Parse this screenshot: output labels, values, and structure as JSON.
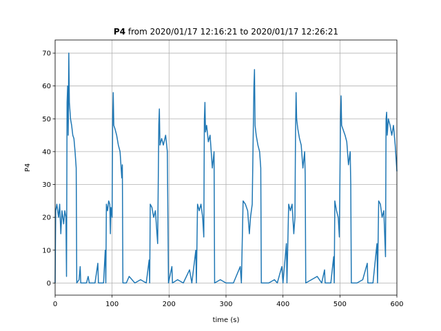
{
  "chart_data": {
    "type": "line",
    "title_bold": "P4",
    "title": "from 2020/01/17 12:16:21 to 2020/01/17 12:26:21",
    "x_label": "time (s)",
    "y_label": "P4",
    "xlim": [
      0,
      600
    ],
    "xticks": [
      0,
      100,
      200,
      300,
      400,
      500,
      600
    ],
    "ylim": [
      -3.7,
      74
    ],
    "yticks": [
      0,
      10,
      20,
      30,
      40,
      50,
      60,
      70
    ],
    "grid": true,
    "color": "#1f77b4",
    "x": [
      0,
      1,
      3,
      6,
      8,
      10,
      12,
      15,
      17,
      19,
      20,
      21,
      22,
      23,
      24,
      25,
      27,
      29,
      31,
      33,
      35,
      37,
      38,
      42,
      44,
      45,
      55,
      58,
      60,
      70,
      75,
      76,
      85,
      88,
      89,
      90,
      92,
      94,
      96,
      97,
      98,
      100,
      101,
      102,
      103,
      105,
      108,
      111,
      114,
      117,
      118,
      119,
      125,
      130,
      140,
      150,
      160,
      165,
      166,
      167,
      170,
      173,
      176,
      180,
      182,
      183,
      184,
      187,
      190,
      194,
      197,
      198,
      199,
      205,
      206,
      215,
      225,
      236,
      240,
      247,
      248,
      250,
      253,
      256,
      259,
      261,
      262,
      263,
      264,
      266,
      269,
      272,
      276,
      279,
      280,
      290,
      300,
      305,
      313,
      325,
      327,
      330,
      334,
      338,
      341,
      343,
      346,
      349,
      350,
      351,
      353,
      356,
      359,
      361,
      362,
      375,
      385,
      390,
      398,
      400,
      406,
      407,
      410,
      413,
      416,
      419,
      421,
      422,
      423,
      424,
      426,
      429,
      432,
      435,
      438,
      439,
      440,
      450,
      460,
      468,
      473,
      474,
      484,
      489,
      490,
      491,
      494,
      497,
      499,
      501,
      502,
      503,
      505,
      509,
      512,
      515,
      518,
      519,
      520,
      530,
      540,
      548,
      549,
      558,
      565,
      566,
      568,
      571,
      574,
      577,
      580,
      581,
      582,
      583,
      585,
      588,
      591,
      594,
      597,
      600
    ],
    "values": [
      0,
      22,
      24,
      20,
      24,
      15,
      22,
      18,
      22,
      20,
      2,
      55,
      60,
      45,
      70,
      55,
      50,
      48,
      45,
      44,
      40,
      35,
      0,
      1,
      5,
      0,
      0,
      2,
      0,
      0,
      6,
      0,
      0,
      10,
      0,
      24,
      22,
      25,
      24,
      15,
      23,
      20,
      50,
      58,
      48,
      47,
      45,
      42,
      40,
      32,
      36,
      0,
      0,
      2,
      0,
      1,
      0,
      7,
      0,
      24,
      23,
      20,
      22,
      12,
      48,
      53,
      42,
      44,
      42,
      45,
      40,
      20,
      0,
      5,
      0,
      1,
      0,
      4,
      0,
      10,
      0,
      24,
      22,
      24,
      20,
      14,
      50,
      55,
      46,
      48,
      43,
      45,
      35,
      40,
      0,
      1,
      0,
      0,
      0,
      5,
      0,
      25,
      24,
      22,
      15,
      20,
      24,
      60,
      65,
      48,
      45,
      42,
      40,
      35,
      0,
      0,
      1,
      0,
      5,
      0,
      12,
      0,
      24,
      22,
      24,
      15,
      20,
      45,
      58,
      50,
      47,
      44,
      42,
      35,
      40,
      33,
      0,
      1,
      2,
      0,
      4,
      0,
      0,
      8,
      0,
      25,
      22,
      20,
      14,
      50,
      57,
      48,
      47,
      45,
      43,
      36,
      40,
      30,
      0,
      0,
      1,
      6,
      0,
      0,
      12,
      0,
      25,
      24,
      20,
      22,
      8,
      50,
      52,
      45,
      50,
      48,
      45,
      48,
      42,
      34
    ]
  }
}
